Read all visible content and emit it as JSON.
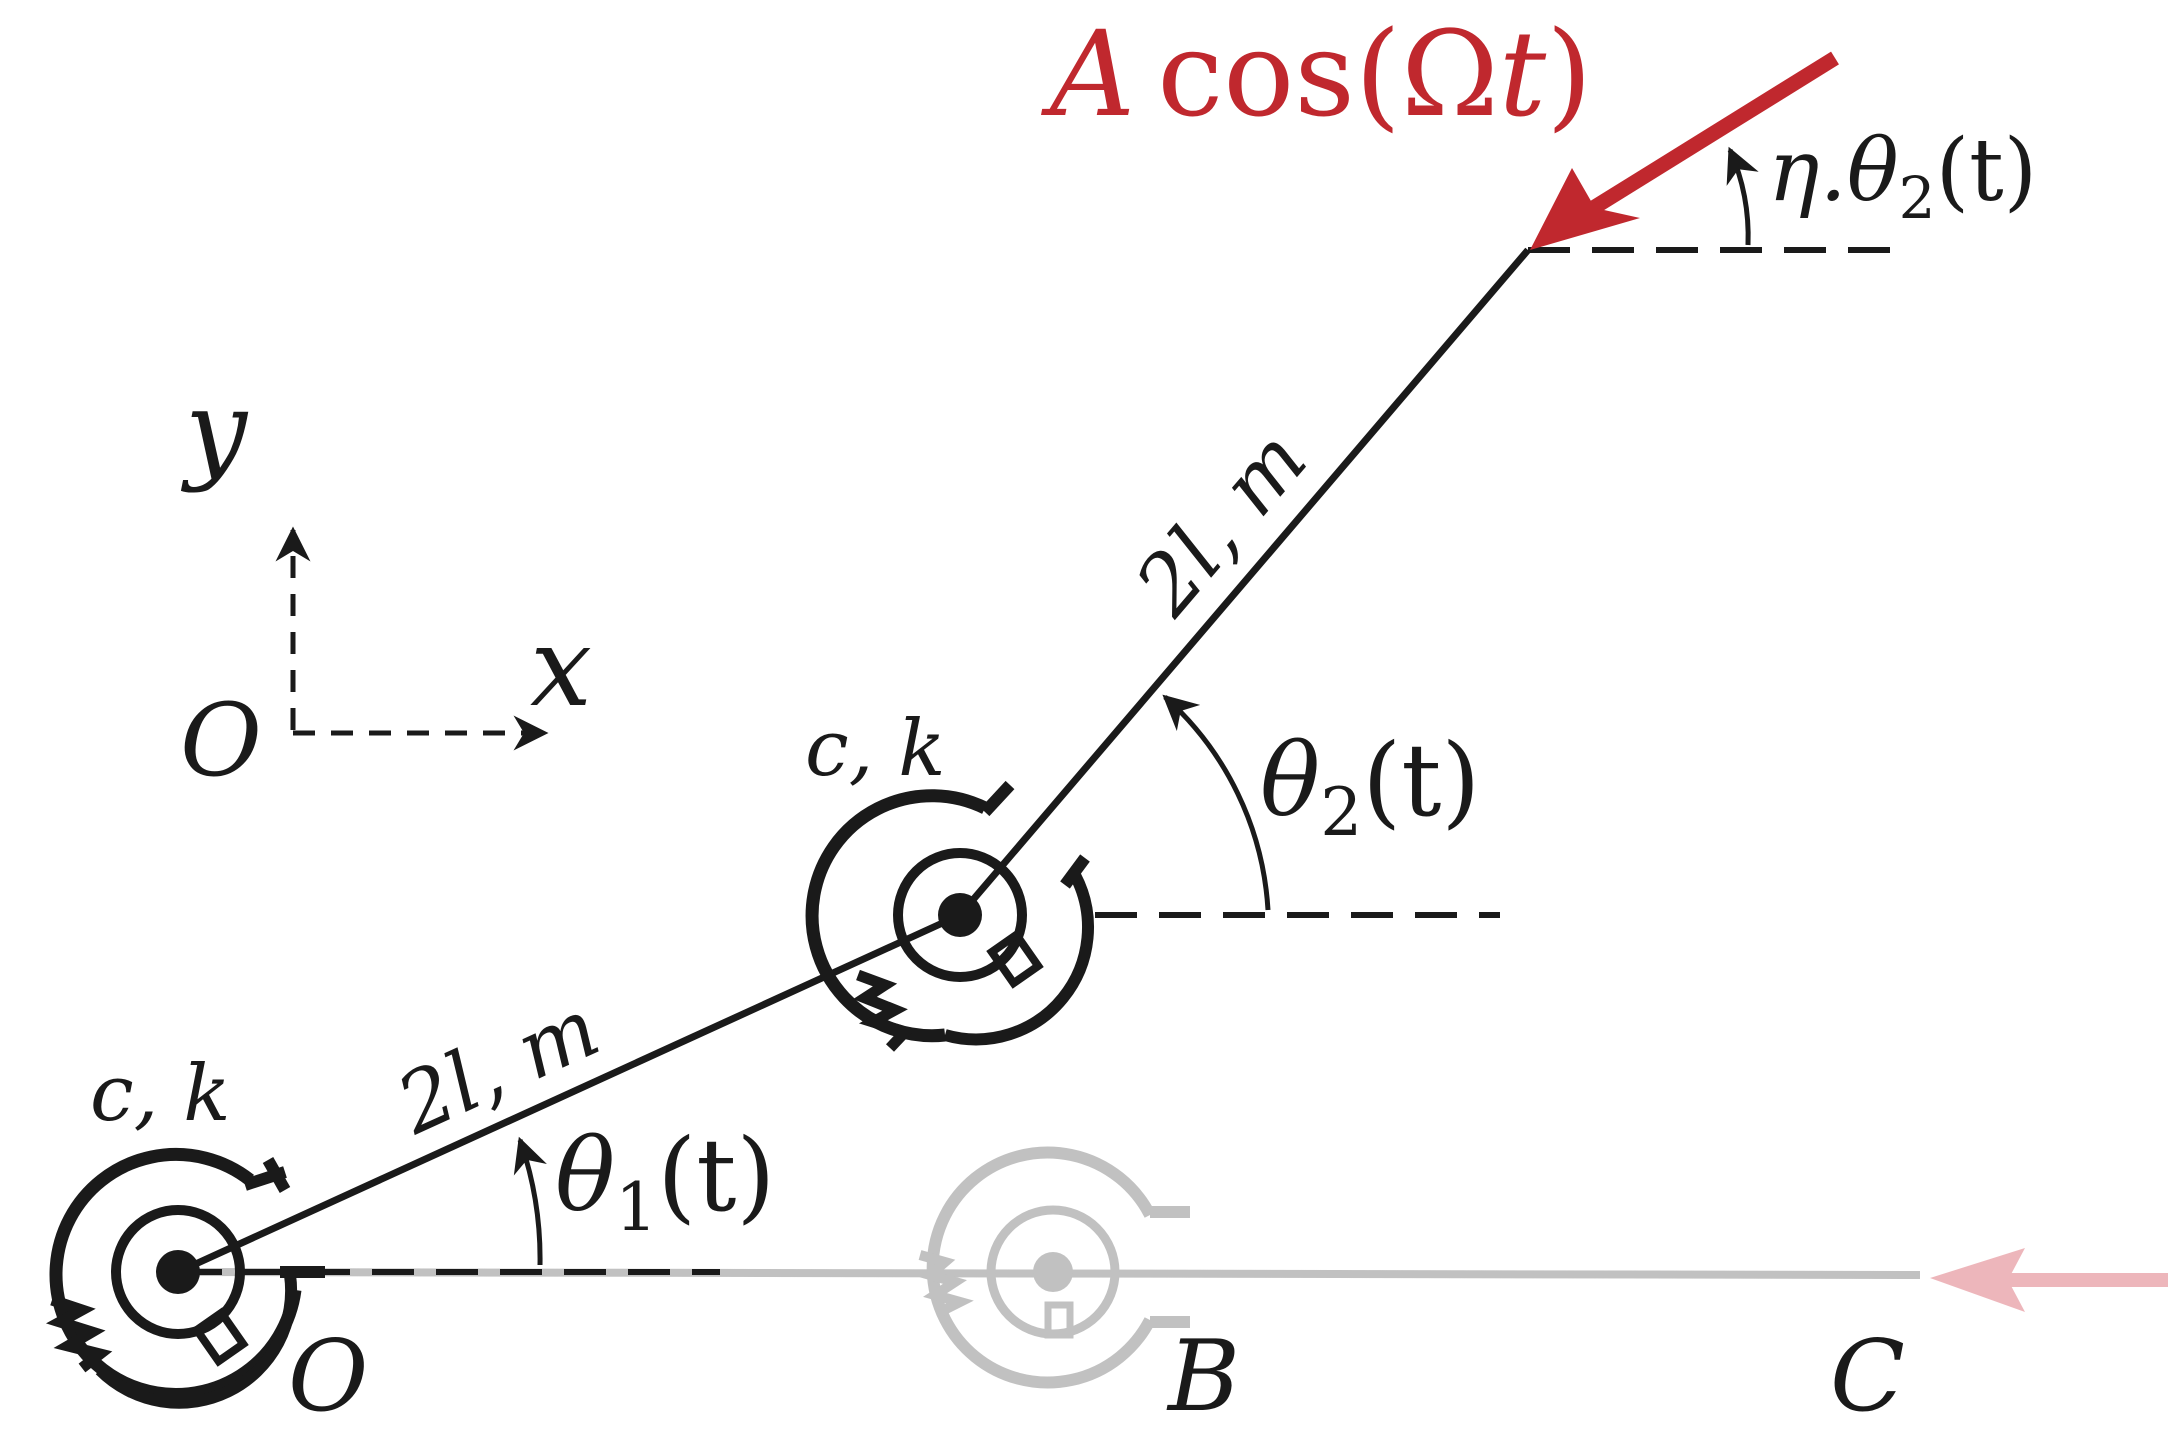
{
  "colors": {
    "ink": "#1a1a1a",
    "force": "#c0282e",
    "ghost": "#9a9a9a",
    "ghost_force": "#e9a6aa"
  },
  "axes": {
    "y": "y",
    "x": "x",
    "origin": "O"
  },
  "joint1": {
    "label": "c, k"
  },
  "joint2": {
    "label": "c, k"
  },
  "link1": {
    "label": "2l, m"
  },
  "link2": {
    "label": "2l, m"
  },
  "angle1": {
    "symbol": "θ",
    "sub": "1",
    "arg": "(t)"
  },
  "angle2": {
    "symbol": "θ",
    "sub": "2",
    "arg": "(t)"
  },
  "force_angle": {
    "prefix": "η.",
    "symbol": "θ",
    "sub": "2",
    "arg": "(t)"
  },
  "force": {
    "amp": "A",
    "func": "cos",
    "open": "(",
    "omega": "Ω",
    "t": "t",
    "close": ")"
  },
  "points": {
    "O": "O",
    "B": "B",
    "C": "C"
  }
}
